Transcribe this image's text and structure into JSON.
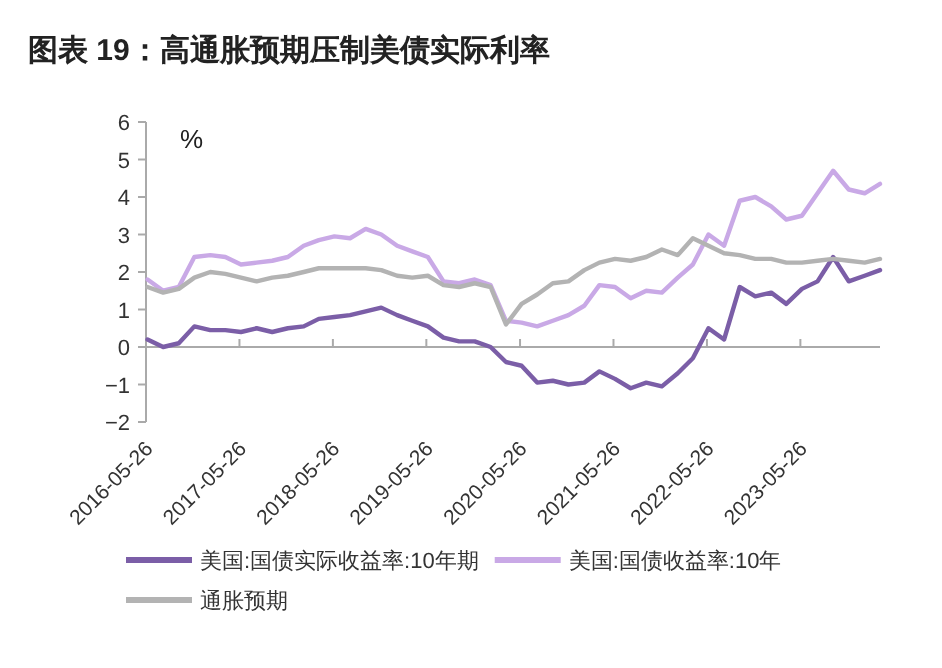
{
  "chart_data": {
    "type": "line",
    "title": "图表 19：高通胀预期压制美债实际利率",
    "ylabel": "%",
    "x": [
      "2016-06",
      "2016-08",
      "2016-10",
      "2016-12",
      "2017-02",
      "2017-04",
      "2017-06",
      "2017-08",
      "2017-10",
      "2017-12",
      "2018-02",
      "2018-04",
      "2018-06",
      "2018-08",
      "2018-10",
      "2018-12",
      "2019-02",
      "2019-04",
      "2019-06",
      "2019-08",
      "2019-10",
      "2019-12",
      "2020-02",
      "2020-04",
      "2020-06",
      "2020-08",
      "2020-10",
      "2020-12",
      "2021-02",
      "2021-04",
      "2021-06",
      "2021-08",
      "2021-10",
      "2021-12",
      "2022-02",
      "2022-04",
      "2022-06",
      "2022-08",
      "2022-10",
      "2022-12",
      "2023-02",
      "2023-04",
      "2023-06",
      "2023-08",
      "2023-10",
      "2023-12",
      "2024-02",
      "2024-04"
    ],
    "series": [
      {
        "name": "美国:国债实际收益率:10年期",
        "color": "#7b5ea7",
        "values": [
          0.2,
          0.0,
          0.1,
          0.55,
          0.45,
          0.45,
          0.4,
          0.5,
          0.4,
          0.5,
          0.55,
          0.75,
          0.8,
          0.85,
          0.95,
          1.05,
          0.85,
          0.7,
          0.55,
          0.25,
          0.15,
          0.15,
          0.0,
          -0.4,
          -0.5,
          -0.95,
          -0.9,
          -1.0,
          -0.95,
          -0.65,
          -0.85,
          -1.1,
          -0.95,
          -1.05,
          -0.7,
          -0.3,
          0.5,
          0.2,
          1.6,
          1.35,
          1.45,
          1.15,
          1.55,
          1.75,
          2.4,
          1.75,
          1.9,
          2.05
        ]
      },
      {
        "name": "美国:国债收益率:10年",
        "color": "#c9a9e6",
        "values": [
          1.8,
          1.5,
          1.6,
          2.4,
          2.45,
          2.4,
          2.2,
          2.25,
          2.3,
          2.4,
          2.7,
          2.85,
          2.95,
          2.9,
          3.15,
          3.0,
          2.7,
          2.55,
          2.4,
          1.75,
          1.7,
          1.8,
          1.65,
          0.7,
          0.65,
          0.55,
          0.7,
          0.85,
          1.1,
          1.65,
          1.6,
          1.3,
          1.5,
          1.45,
          1.85,
          2.2,
          3.0,
          2.7,
          3.9,
          4.0,
          3.75,
          3.4,
          3.5,
          4.1,
          4.7,
          4.2,
          4.1,
          4.35
        ]
      },
      {
        "name": "通胀预期",
        "color": "#b3b3b3",
        "values": [
          1.6,
          1.45,
          1.55,
          1.85,
          2.0,
          1.95,
          1.85,
          1.75,
          1.85,
          1.9,
          2.0,
          2.1,
          2.1,
          2.1,
          2.1,
          2.05,
          1.9,
          1.85,
          1.9,
          1.65,
          1.6,
          1.7,
          1.6,
          0.6,
          1.15,
          1.4,
          1.7,
          1.75,
          2.05,
          2.25,
          2.35,
          2.3,
          2.4,
          2.6,
          2.45,
          2.9,
          2.7,
          2.5,
          2.45,
          2.35,
          2.35,
          2.25,
          2.25,
          2.3,
          2.35,
          2.3,
          2.25,
          2.35
        ]
      }
    ],
    "xlim": [
      "2016-05-26",
      "2024-04"
    ],
    "xticks": [
      "2016-05-26",
      "2017-05-26",
      "2018-05-26",
      "2019-05-26",
      "2020-05-26",
      "2021-05-26",
      "2022-05-26",
      "2023-05-26"
    ],
    "ylim": [
      -2,
      6
    ],
    "yticks": [
      -2,
      -1,
      0,
      1,
      2,
      3,
      4,
      5,
      6
    ],
    "legend": "bottom",
    "marker": "none",
    "line_style": "solid"
  }
}
